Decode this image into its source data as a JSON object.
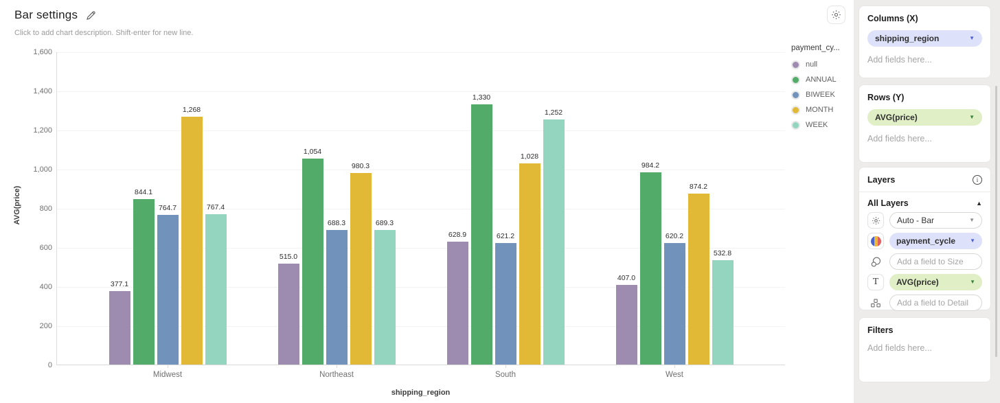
{
  "header": {
    "title": "Bar settings",
    "subtitle": "Click to add chart description. Shift-enter for new line."
  },
  "chart_data": {
    "type": "bar",
    "title": "Bar settings",
    "categories": [
      "Midwest",
      "Northeast",
      "South",
      "West"
    ],
    "series": [
      {
        "name": "null",
        "color": "#9e8cb0",
        "values": [
          377.1,
          515.0,
          628.9,
          407.0
        ],
        "labels": [
          "377.1",
          "515.0",
          "628.9",
          "407.0"
        ]
      },
      {
        "name": "ANNUAL",
        "color": "#53ab69",
        "values": [
          844.1,
          1054,
          1330,
          984.2
        ],
        "labels": [
          "844.1",
          "1,054",
          "1,330",
          "984.2"
        ]
      },
      {
        "name": "BIWEEK",
        "color": "#7092bb",
        "values": [
          764.7,
          688.3,
          621.2,
          620.2
        ],
        "labels": [
          "764.7",
          "688.3",
          "621.2",
          "620.2"
        ]
      },
      {
        "name": "MONTH",
        "color": "#e2b936",
        "values": [
          1268,
          980.3,
          1028,
          874.2
        ],
        "labels": [
          "1,268",
          "980.3",
          "1,028",
          "874.2"
        ]
      },
      {
        "name": "WEEK",
        "color": "#93d5bf",
        "values": [
          767.4,
          689.3,
          1252,
          532.8
        ],
        "labels": [
          "767.4",
          "689.3",
          "1,252",
          "532.8"
        ]
      }
    ],
    "xlabel": "shipping_region",
    "ylabel": "AVG(price)",
    "ylim": [
      0,
      1600
    ],
    "y_ticks": [
      "0",
      "200",
      "400",
      "600",
      "800",
      "1,000",
      "1,200",
      "1,400",
      "1,600"
    ],
    "grid": "horizontal",
    "legend_title": "payment_cy...",
    "legend_position": "right"
  },
  "panel": {
    "columns_section": {
      "title": "Columns (X)",
      "field": "shipping_region",
      "placeholder": "Add fields here..."
    },
    "rows_section": {
      "title": "Rows (Y)",
      "field": "AVG(price)",
      "placeholder": "Add fields here..."
    },
    "layers_section": {
      "title": "Layers",
      "group_title": "All Layers",
      "chart_type": "Auto - Bar",
      "color_field": "payment_cycle",
      "size_placeholder": "Add a field to Size",
      "text_field": "AVG(price)",
      "detail_placeholder": "Add a field to Detail"
    },
    "filters_section": {
      "title": "Filters",
      "placeholder": "Add fields here..."
    }
  },
  "colors": {
    "pill_lavender": "#dde1fa",
    "pill_green": "#e0efc5",
    "panel_background": "#edecea",
    "bar_null": "#9e8cb0",
    "bar_annual": "#53ab69",
    "bar_biweek": "#7092bb",
    "bar_month": "#e2b936",
    "bar_week": "#93d5bf"
  }
}
